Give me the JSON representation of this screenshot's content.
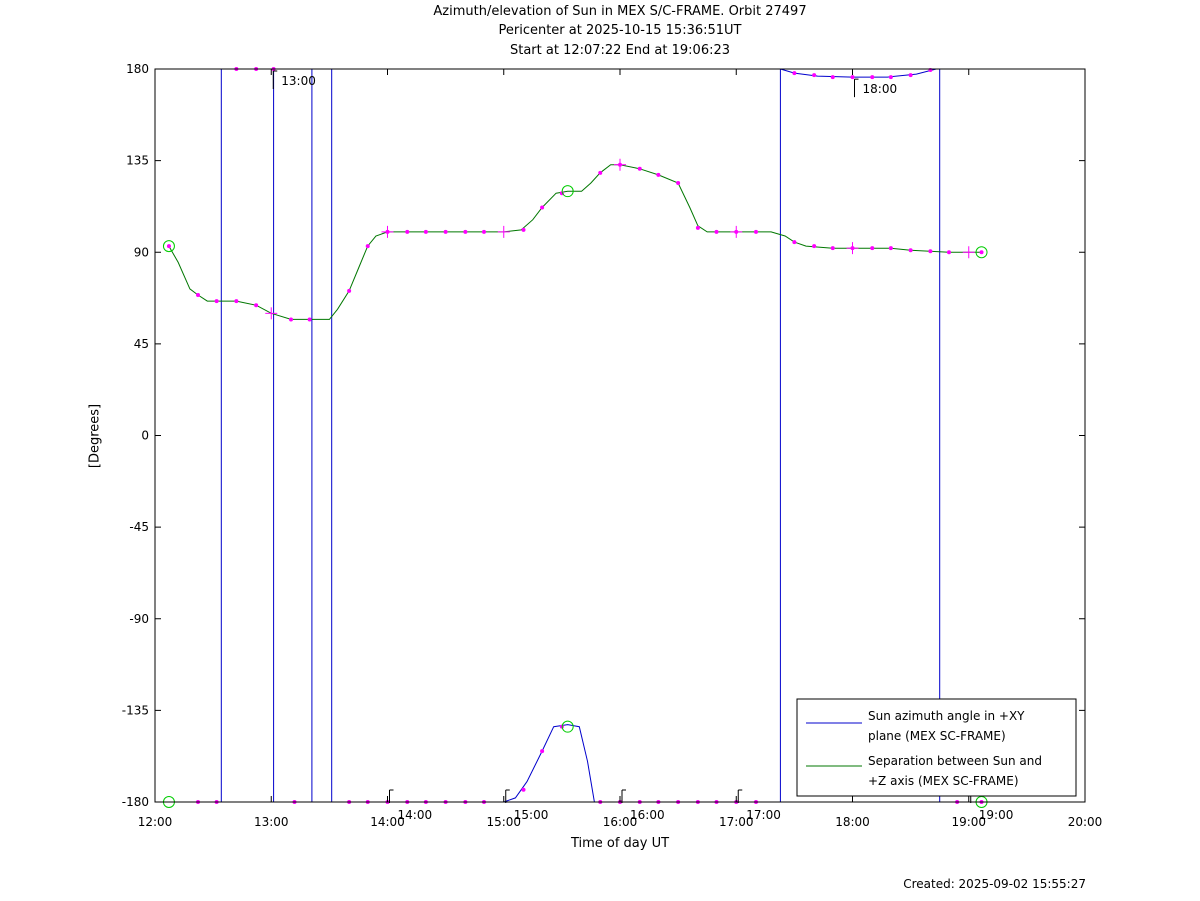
{
  "title_lines": [
    "Azimuth/elevation of Sun in MEX S/C-FRAME.  Orbit 27497",
    "Pericenter at 2025-10-15 15:36:51UT",
    "Start at 12:07:22 End at 19:06:23"
  ],
  "footer": {
    "created": "Created: 2025-09-02 15:55:27"
  },
  "chart_data": {
    "type": "line",
    "xlabel": "Time of day UT",
    "ylabel": "[Degrees]",
    "xlim": [
      12.0,
      20.0
    ],
    "ylim": [
      -180,
      180
    ],
    "x_ticks": [
      12,
      13,
      14,
      15,
      16,
      17,
      18,
      19,
      20
    ],
    "x_tick_labels": [
      "12:00",
      "13:00",
      "14:00",
      "15:00",
      "16:00",
      "17:00",
      "18:00",
      "19:00",
      "20:00"
    ],
    "y_ticks": [
      180,
      135,
      90,
      45,
      0,
      -45,
      -90,
      -135,
      -180
    ],
    "y_tick_labels": [
      "180",
      "135",
      "90",
      "45",
      "0",
      "-45",
      "-90",
      "-135",
      "-180"
    ],
    "legend_position": "bottom-right",
    "series": [
      {
        "name": "Sun azimuth angle in +XY plane (MEX SC-FRAME)",
        "legend_lines": [
          "Sun azimuth angle in +XY",
          "plane (MEX SC-FRAME)"
        ],
        "color": "#0000cc",
        "segments": [
          [
            [
              12.12,
              -180
            ],
            [
              12.3,
              -180
            ],
            [
              12.45,
              -180
            ],
            [
              12.57,
              -180
            ],
            [
              12.57,
              180
            ]
          ],
          [
            [
              12.57,
              180
            ],
            [
              12.7,
              180
            ],
            [
              12.85,
              180
            ],
            [
              13.0,
              180
            ],
            [
              13.02,
              180
            ],
            [
              13.02,
              -180
            ]
          ],
          [
            [
              13.02,
              -180
            ],
            [
              13.2,
              -180
            ],
            [
              13.35,
              -180
            ],
            [
              13.35,
              180
            ]
          ],
          [
            [
              13.35,
              180
            ],
            [
              13.52,
              180
            ],
            [
              13.52,
              -180
            ]
          ],
          [
            [
              13.52,
              -180
            ],
            [
              13.7,
              -180
            ],
            [
              13.9,
              -180
            ],
            [
              14.2,
              -180
            ],
            [
              14.5,
              -180
            ],
            [
              14.8,
              -180
            ],
            [
              15.0,
              -180
            ],
            [
              15.1,
              -178
            ],
            [
              15.2,
              -170
            ],
            [
              15.33,
              -155
            ],
            [
              15.43,
              -143
            ],
            [
              15.55,
              -142
            ],
            [
              15.65,
              -143
            ],
            [
              15.72,
              -160
            ],
            [
              15.78,
              -180
            ],
            [
              16.0,
              -180
            ],
            [
              16.5,
              -180
            ],
            [
              17.0,
              -180
            ],
            [
              17.38,
              -180
            ],
            [
              17.38,
              180
            ]
          ],
          [
            [
              17.38,
              180
            ],
            [
              17.5,
              178
            ],
            [
              17.7,
              176.5
            ],
            [
              18.0,
              176
            ],
            [
              18.3,
              176
            ],
            [
              18.55,
              177.5
            ],
            [
              18.72,
              180
            ],
            [
              18.75,
              180
            ],
            [
              18.75,
              -180
            ]
          ],
          [
            [
              18.75,
              -180
            ],
            [
              18.9,
              -180
            ],
            [
              19.11,
              -180
            ]
          ]
        ],
        "markers": [
          [
            12.37,
            -180
          ],
          [
            12.53,
            -180
          ],
          [
            13.2,
            -180
          ],
          [
            13.67,
            -180
          ],
          [
            13.83,
            -180
          ],
          [
            14.0,
            -180
          ],
          [
            14.17,
            -180
          ],
          [
            14.33,
            -180
          ],
          [
            14.5,
            -180
          ],
          [
            14.67,
            -180
          ],
          [
            14.83,
            -180
          ],
          [
            15.17,
            -174
          ],
          [
            15.33,
            -155
          ],
          [
            15.5,
            -143
          ],
          [
            15.83,
            -180
          ],
          [
            16.0,
            -180
          ],
          [
            16.17,
            -180
          ],
          [
            16.33,
            -180
          ],
          [
            16.5,
            -180
          ],
          [
            16.67,
            -180
          ],
          [
            16.83,
            -180
          ],
          [
            17.0,
            -180
          ],
          [
            17.17,
            -180
          ],
          [
            12.7,
            180
          ],
          [
            12.87,
            180
          ],
          [
            13.02,
            180
          ],
          [
            17.5,
            178
          ],
          [
            17.67,
            177
          ],
          [
            17.83,
            176
          ],
          [
            18.0,
            176
          ],
          [
            18.17,
            176
          ],
          [
            18.33,
            176
          ],
          [
            18.5,
            177
          ],
          [
            18.67,
            179.5
          ],
          [
            18.9,
            -180
          ],
          [
            19.11,
            -180
          ]
        ]
      },
      {
        "name": "Separation between Sun and +Z axis (MEX SC-FRAME)",
        "legend_lines": [
          "Separation between Sun and",
          "+Z axis (MEX SC-FRAME)"
        ],
        "color": "#007700",
        "points": [
          [
            12.12,
            93
          ],
          [
            12.2,
            85
          ],
          [
            12.3,
            72
          ],
          [
            12.37,
            69
          ],
          [
            12.45,
            66
          ],
          [
            12.55,
            66
          ],
          [
            12.7,
            66
          ],
          [
            12.87,
            64
          ],
          [
            13.0,
            60
          ],
          [
            13.17,
            57
          ],
          [
            13.35,
            57
          ],
          [
            13.5,
            57
          ],
          [
            13.57,
            62
          ],
          [
            13.67,
            71
          ],
          [
            13.75,
            82
          ],
          [
            13.83,
            93
          ],
          [
            13.9,
            98
          ],
          [
            14.0,
            100
          ],
          [
            14.5,
            100
          ],
          [
            15.0,
            100
          ],
          [
            15.15,
            101
          ],
          [
            15.25,
            106
          ],
          [
            15.33,
            112
          ],
          [
            15.45,
            119
          ],
          [
            15.55,
            120
          ],
          [
            15.67,
            120
          ],
          [
            15.75,
            124
          ],
          [
            15.83,
            129
          ],
          [
            15.92,
            133
          ],
          [
            16.0,
            133
          ],
          [
            16.17,
            131
          ],
          [
            16.33,
            128
          ],
          [
            16.5,
            124
          ],
          [
            16.6,
            112
          ],
          [
            16.67,
            103
          ],
          [
            16.75,
            100
          ],
          [
            17.0,
            100
          ],
          [
            17.3,
            100
          ],
          [
            17.42,
            98
          ],
          [
            17.5,
            95
          ],
          [
            17.6,
            93
          ],
          [
            17.83,
            92
          ],
          [
            18.0,
            92
          ],
          [
            18.33,
            92
          ],
          [
            18.5,
            91
          ],
          [
            18.83,
            90
          ],
          [
            19.0,
            90
          ],
          [
            19.11,
            90
          ]
        ],
        "markers": [
          [
            12.12,
            93
          ],
          [
            12.37,
            69
          ],
          [
            12.53,
            66
          ],
          [
            12.7,
            66
          ],
          [
            12.87,
            64
          ],
          [
            13.17,
            57
          ],
          [
            13.33,
            57
          ],
          [
            13.67,
            71
          ],
          [
            13.83,
            93
          ],
          [
            14.0,
            100
          ],
          [
            14.17,
            100
          ],
          [
            14.33,
            100
          ],
          [
            14.5,
            100
          ],
          [
            14.67,
            100
          ],
          [
            14.83,
            100
          ],
          [
            15.17,
            101
          ],
          [
            15.33,
            112
          ],
          [
            15.5,
            119
          ],
          [
            15.83,
            129
          ],
          [
            16.0,
            133
          ],
          [
            16.17,
            131
          ],
          [
            16.33,
            128
          ],
          [
            16.5,
            124
          ],
          [
            16.67,
            102
          ],
          [
            16.83,
            100
          ],
          [
            17.0,
            100
          ],
          [
            17.17,
            100
          ],
          [
            17.5,
            95
          ],
          [
            17.67,
            93
          ],
          [
            17.83,
            92
          ],
          [
            18.0,
            92
          ],
          [
            18.17,
            92
          ],
          [
            18.33,
            92
          ],
          [
            18.5,
            91
          ],
          [
            18.67,
            90.5
          ],
          [
            18.83,
            90
          ],
          [
            19.11,
            90
          ]
        ]
      }
    ],
    "hour_ticks": [
      {
        "label": "13:00",
        "x": 13.0,
        "y": 180,
        "anchor": "top"
      },
      {
        "label": "14:00",
        "x": 14.0,
        "y": -180,
        "anchor": "bottom"
      },
      {
        "label": "15:00",
        "x": 15.0,
        "y": -180,
        "anchor": "bottom"
      },
      {
        "label": "16:00",
        "x": 16.0,
        "y": -180,
        "anchor": "bottom"
      },
      {
        "label": "17:00",
        "x": 17.0,
        "y": -180,
        "anchor": "bottom"
      },
      {
        "label": "18:00",
        "x": 18.0,
        "y": 176,
        "anchor": "top"
      },
      {
        "label": "19:00",
        "x": 19.0,
        "y": -180,
        "anchor": "bottom"
      }
    ],
    "circle_markers": [
      [
        12.12,
        93
      ],
      [
        12.12,
        -180
      ],
      [
        15.55,
        120
      ],
      [
        15.55,
        -143
      ],
      [
        19.11,
        90
      ],
      [
        19.11,
        -180
      ]
    ],
    "sep_crosses": [
      [
        13.0,
        60
      ],
      [
        14.0,
        100
      ],
      [
        15.0,
        100
      ],
      [
        16.0,
        133
      ],
      [
        17.0,
        100
      ],
      [
        18.0,
        92
      ],
      [
        19.0,
        90
      ]
    ],
    "marker_color": "#ff00ff",
    "circle_color": "#00cc00"
  }
}
